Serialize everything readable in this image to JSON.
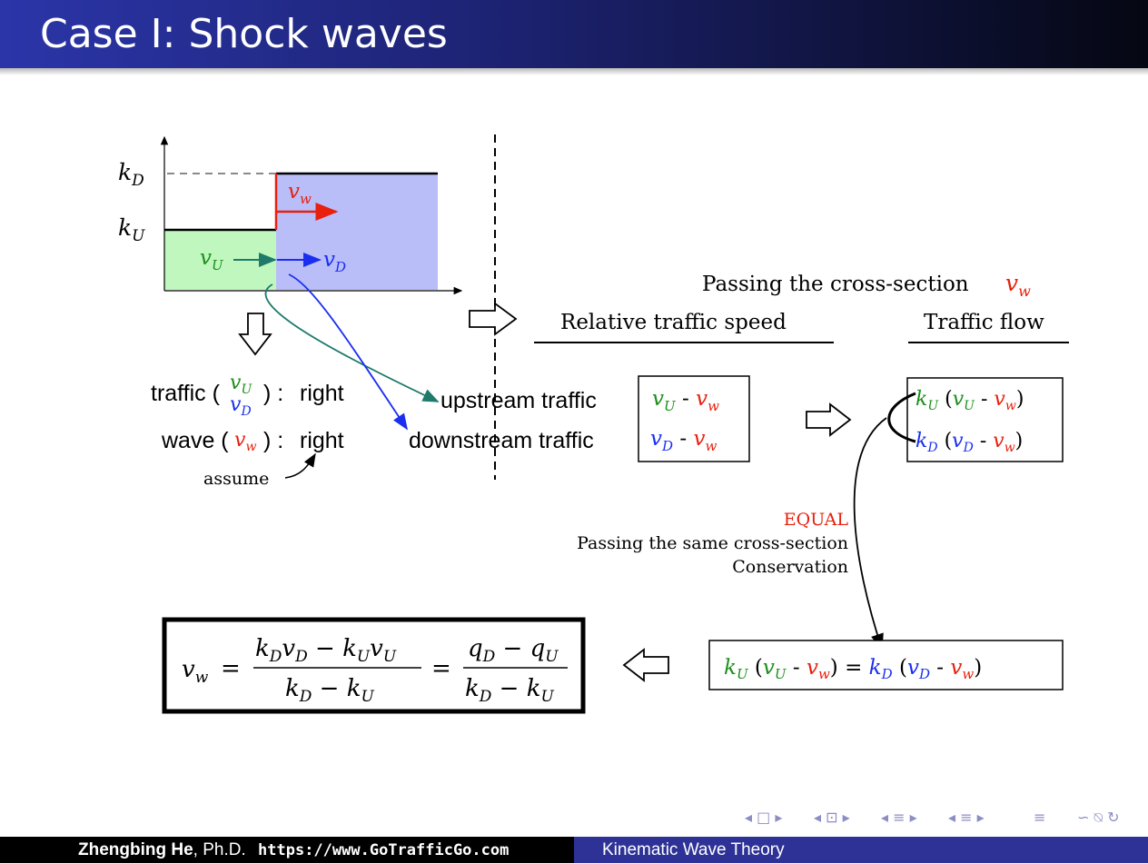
{
  "slide": {
    "title": "Case I: Shock waves"
  },
  "plot": {
    "k_D": "k",
    "k_D_sub": "D",
    "k_U": "k",
    "k_U_sub": "U",
    "v_w": "v",
    "v_w_sub": "w",
    "v_U": "v",
    "v_U_sub": "U",
    "v_D": "v",
    "v_D_sub": "D",
    "colors": {
      "upstream_fill": "#bff7bf",
      "downstream_fill": "#b9bdf8",
      "wave": "#e8200e",
      "green": "#1a8f1a",
      "teal": "#1f7a6a",
      "blue": "#1a2ef0"
    }
  },
  "assumption": {
    "traffic_label": "traffic (",
    "traffic_value": "right",
    "wave_label": "wave (",
    "wave_value": "right",
    "assume": "assume",
    "colon_close": ") :"
  },
  "labels": {
    "upstream": "upstream traffic",
    "downstream": "downstream traffic",
    "passing": "Passing the cross-section",
    "relative_speed": "Relative traffic speed",
    "traffic_flow": "Traffic flow",
    "equal": "EQUAL",
    "passing_same": "Passing the same cross-section",
    "conservation": "Conservation"
  },
  "formula": {
    "lhs": "v",
    "lhs_sub": "w",
    "num1": "k",
    "den1": "k",
    "num2": "q",
    "den2": "k"
  },
  "navigation": {
    "glyphs": [
      "◂ □ ▸",
      "◂ ⊡ ▸",
      "◂ ≡ ▸",
      "◂ ≡ ▸",
      "≡",
      "∽ ⍉ ↻"
    ]
  },
  "footer": {
    "author": "Zhengbing He",
    "degree": ", Ph.D.",
    "url": "https://www.GoTrafficGo.com",
    "topic": "Kinematic Wave Theory"
  }
}
